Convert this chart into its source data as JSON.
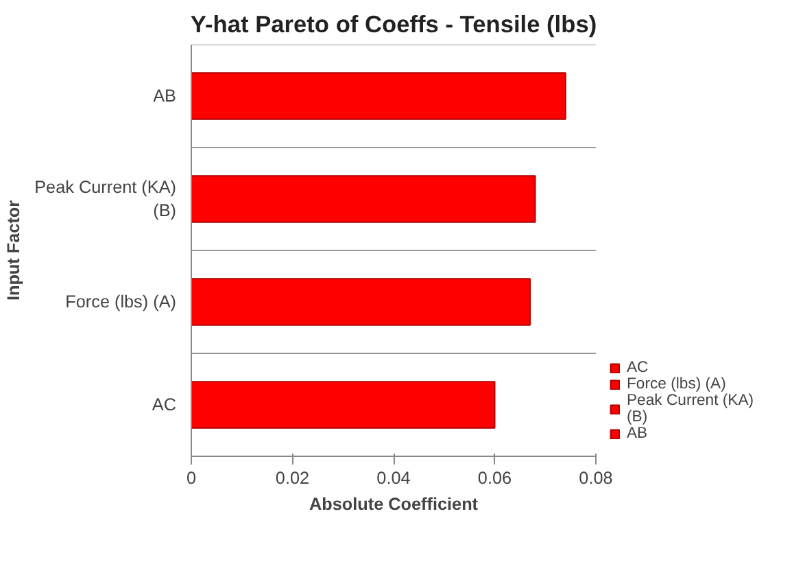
{
  "chart_data": {
    "type": "bar",
    "orientation": "horizontal",
    "title": "Y-hat Pareto of Coeffs - Tensile (lbs)",
    "xlabel": "Absolute Coefficient",
    "ylabel": "Input Factor",
    "categories": [
      "AB",
      "Peak Current (KA) (B)",
      "Force (lbs) (A)",
      "AC"
    ],
    "series": [
      {
        "name": "AC",
        "color": "#ff0000",
        "values": [
          null,
          null,
          null,
          0.06
        ]
      },
      {
        "name": "Force (lbs) (A)",
        "color": "#ff0000",
        "values": [
          null,
          null,
          0.067,
          null
        ]
      },
      {
        "name": "Peak Current (KA) (B)",
        "color": "#ff0000",
        "values": [
          null,
          0.068,
          null,
          null
        ]
      },
      {
        "name": "AB",
        "color": "#ff0000",
        "values": [
          0.074,
          null,
          null,
          null
        ]
      }
    ],
    "xlim": [
      0,
      0.08
    ],
    "xticks": [
      0,
      0.02,
      0.04,
      0.06,
      0.08
    ],
    "grid": "y",
    "legend": "bottom right"
  }
}
